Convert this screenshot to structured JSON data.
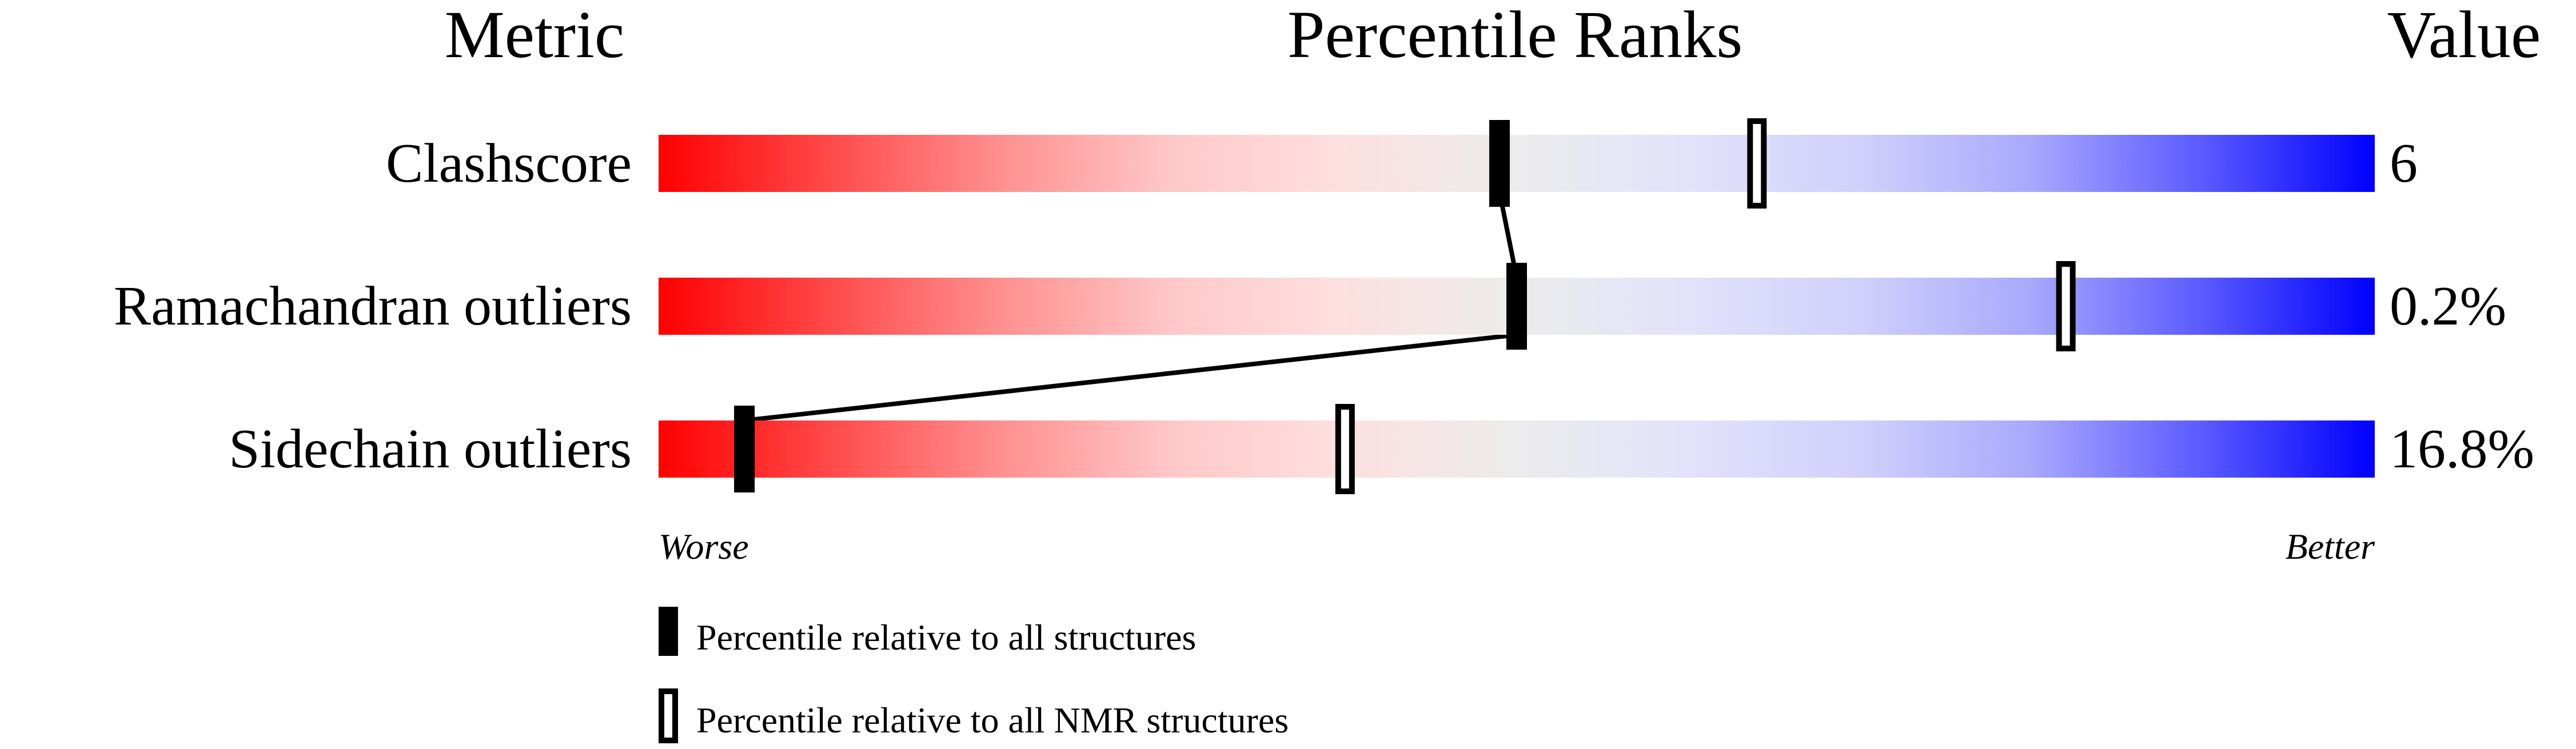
{
  "chart_data": {
    "type": "percentile-bar",
    "headers": {
      "metric": "Metric",
      "ranks": "Percentile Ranks",
      "value": "Value"
    },
    "xlim": [
      0,
      100
    ],
    "axis_labels": {
      "left": "Worse",
      "right": "Better"
    },
    "gradient_colors": [
      "#ff0000",
      "#eeeeee",
      "#0000ff"
    ],
    "metrics": [
      {
        "name": "Clashscore",
        "value": "6",
        "percentile_all": 49,
        "percentile_nmr": 64
      },
      {
        "name": "Ramachandran outliers",
        "value": "0.2%",
        "percentile_all": 50,
        "percentile_nmr": 82
      },
      {
        "name": "Sidechain outliers",
        "value": "16.8%",
        "percentile_all": 5,
        "percentile_nmr": 40
      }
    ],
    "legend": [
      {
        "marker": "filled",
        "label": "Percentile relative to all structures"
      },
      {
        "marker": "open",
        "label": "Percentile relative to all NMR structures"
      }
    ]
  }
}
